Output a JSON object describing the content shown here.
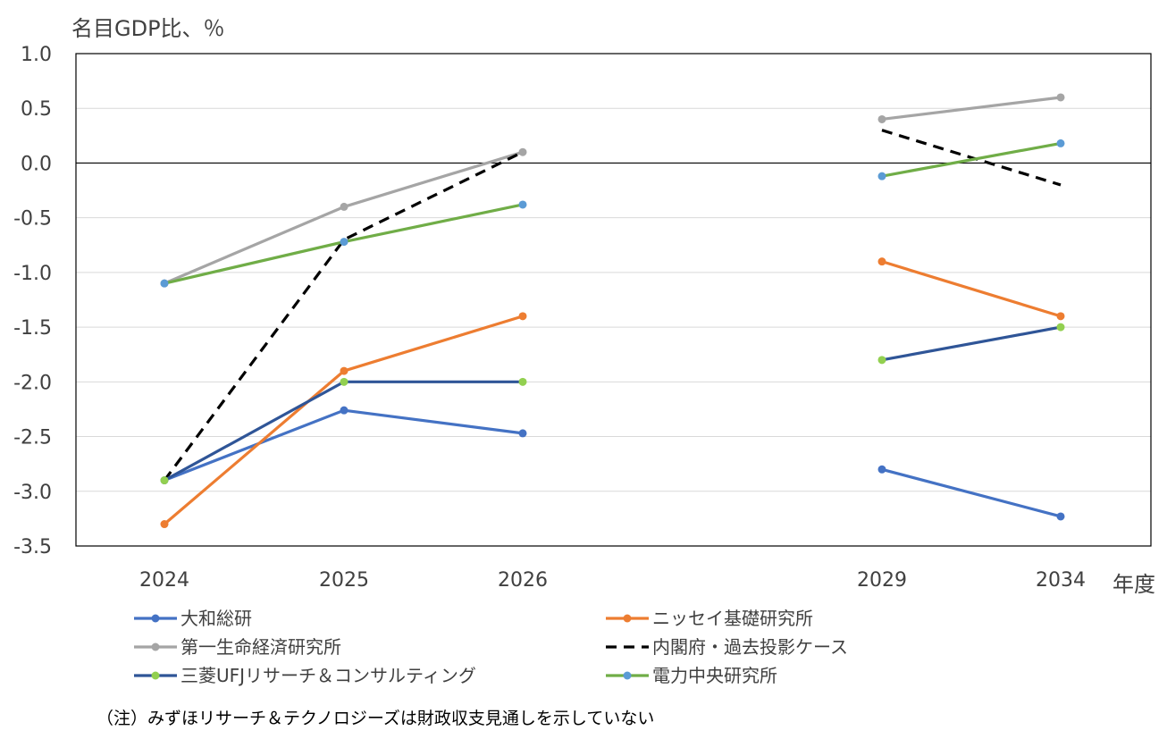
{
  "chart_data": {
    "type": "line",
    "ylabel": "名目GDP比、％",
    "xlabel": "年度",
    "categories": [
      "2024",
      "2025",
      "2026",
      "2029",
      "2034"
    ],
    "y_ticks": [
      "1.0",
      "0.5",
      "0.0",
      "-0.5",
      "-1.0",
      "-1.5",
      "-2.0",
      "-2.5",
      "-3.0",
      "-3.5"
    ],
    "ylim": [
      -3.5,
      1.0
    ],
    "grid": true,
    "legend_position": "bottom",
    "series": [
      {
        "name": "大和総研",
        "color": "#4472C4",
        "marker_color": "#4472C4",
        "dashed": false,
        "values": [
          -2.9,
          -2.26,
          -2.47,
          -2.8,
          -3.23
        ]
      },
      {
        "name": "ニッセイ基礎研究所",
        "color": "#ED7D31",
        "marker_color": "#ED7D31",
        "dashed": false,
        "values": [
          -3.3,
          -1.9,
          -1.4,
          -0.9,
          -1.4
        ]
      },
      {
        "name": "第一生命経済研究所",
        "color": "#A5A5A5",
        "marker_color": "#A5A5A5",
        "dashed": false,
        "values": [
          -1.1,
          -0.4,
          0.1,
          0.4,
          0.6
        ]
      },
      {
        "name": "内閣府・過去投影ケース",
        "color": "#000000",
        "marker_color": null,
        "dashed": true,
        "values": [
          -2.9,
          -0.7,
          0.1,
          0.3,
          -0.2
        ]
      },
      {
        "name": "三菱UFJリサーチ＆コンサルティング",
        "color": "#2F5597",
        "marker_color": "#92D050",
        "dashed": false,
        "values": [
          -2.9,
          -2.0,
          -2.0,
          -1.8,
          -1.5
        ]
      },
      {
        "name": "電力中央研究所",
        "color": "#70AD47",
        "marker_color": "#5B9BD5",
        "dashed": false,
        "values": [
          -1.1,
          -0.72,
          -0.38,
          -0.12,
          0.18
        ]
      }
    ]
  },
  "note": "（注）みずほリサーチ＆テクノロジーズは財政収支見通しを示していない"
}
